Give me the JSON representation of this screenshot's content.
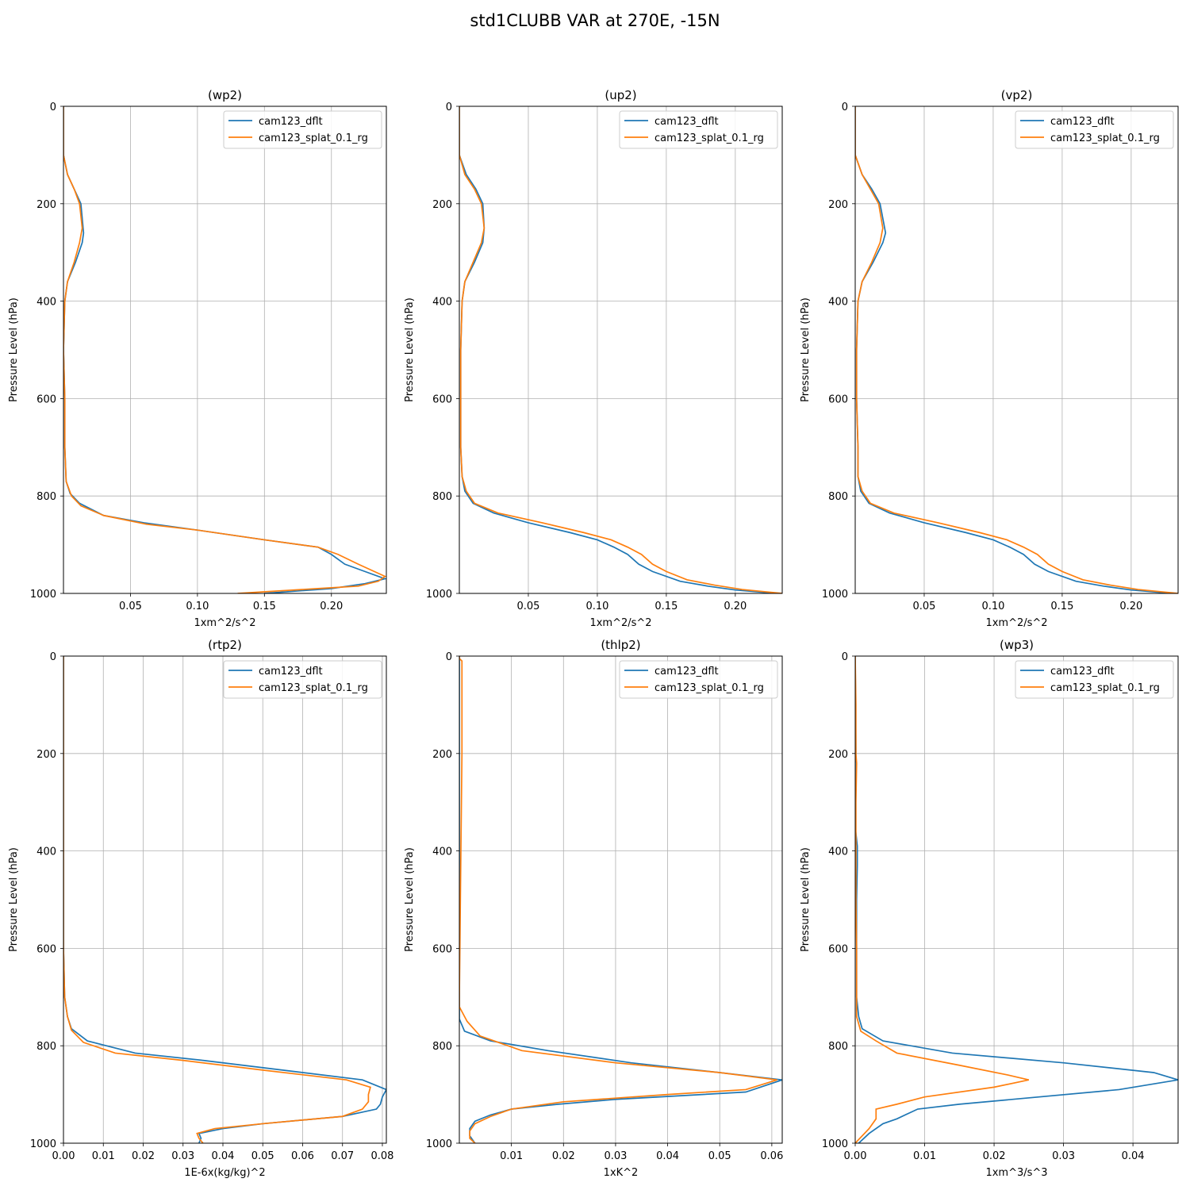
{
  "suptitle": "std1CLUBB VAR at 270E, -15N",
  "series_colors": {
    "cam123_dflt": "#1f77b4",
    "cam123_splat_0.1_rg": "#ff7f0e"
  },
  "chart_data": [
    {
      "type": "line",
      "title": "(wp2)",
      "xlabel": "1xm^2/s^2",
      "ylabel": "Pressure Level (hPa)",
      "xlim": [
        0.0,
        0.241
      ],
      "ylim": [
        1000,
        0
      ],
      "y_inverted": true,
      "grid": true,
      "legend": "top-right",
      "xticks": [
        0.05,
        0.1,
        0.15,
        0.2
      ],
      "xtick_labels": [
        "0.05",
        "0.10",
        "0.15",
        "0.20"
      ],
      "yticks": [
        0,
        200,
        400,
        600,
        800,
        1000
      ],
      "ytick_labels": [
        "0",
        "200",
        "400",
        "600",
        "800",
        "1000"
      ],
      "series": [
        {
          "name": "cam123_dflt",
          "x": [
            0.0,
            0.0,
            0.003,
            0.008,
            0.013,
            0.015,
            0.014,
            0.009,
            0.003,
            0.001,
            0.0,
            0.001,
            0.001,
            0.002,
            0.005,
            0.012,
            0.03,
            0.06,
            0.1,
            0.15,
            0.19,
            0.2,
            0.21,
            0.225,
            0.24,
            0.225,
            0.2,
            0.15
          ],
          "y": [
            0,
            100,
            140,
            170,
            200,
            260,
            280,
            320,
            360,
            400,
            500,
            600,
            700,
            770,
            795,
            815,
            840,
            855,
            870,
            890,
            905,
            920,
            940,
            955,
            970,
            980,
            990,
            1000
          ]
        },
        {
          "name": "cam123_splat_0.1_rg",
          "x": [
            0.0,
            0.0,
            0.003,
            0.008,
            0.012,
            0.014,
            0.012,
            0.008,
            0.003,
            0.001,
            0.0,
            0.001,
            0.001,
            0.002,
            0.006,
            0.013,
            0.03,
            0.062,
            0.1,
            0.15,
            0.19,
            0.205,
            0.22,
            0.232,
            0.24,
            0.235,
            0.22,
            0.19,
            0.13
          ],
          "y": [
            0,
            100,
            140,
            170,
            200,
            250,
            280,
            320,
            360,
            400,
            500,
            600,
            700,
            770,
            800,
            820,
            840,
            858,
            870,
            890,
            905,
            920,
            940,
            955,
            965,
            975,
            985,
            990,
            1000
          ]
        }
      ]
    },
    {
      "type": "line",
      "title": "(up2)",
      "xlabel": "1xm^2/s^2",
      "ylabel": "Pressure Level (hPa)",
      "xlim": [
        0.0,
        0.234
      ],
      "ylim": [
        1000,
        0
      ],
      "y_inverted": true,
      "grid": true,
      "legend": "top-right",
      "xticks": [
        0.05,
        0.1,
        0.15,
        0.2
      ],
      "xtick_labels": [
        "0.05",
        "0.10",
        "0.15",
        "0.20"
      ],
      "yticks": [
        0,
        200,
        400,
        600,
        800,
        1000
      ],
      "ytick_labels": [
        "0",
        "200",
        "400",
        "600",
        "800",
        "1000"
      ],
      "series": [
        {
          "name": "cam123_dflt",
          "x": [
            0.0,
            0.0,
            0.005,
            0.012,
            0.017,
            0.018,
            0.017,
            0.011,
            0.004,
            0.002,
            0.001,
            0.001,
            0.001,
            0.002,
            0.004,
            0.01,
            0.025,
            0.05,
            0.08,
            0.1,
            0.112,
            0.122,
            0.13,
            0.14,
            0.16,
            0.18,
            0.2,
            0.23
          ],
          "y": [
            0,
            100,
            140,
            170,
            200,
            250,
            280,
            320,
            360,
            400,
            500,
            600,
            700,
            760,
            790,
            815,
            835,
            855,
            875,
            890,
            905,
            920,
            940,
            955,
            975,
            985,
            993,
            1000
          ]
        },
        {
          "name": "cam123_splat_0.1_rg",
          "x": [
            0.0,
            0.0,
            0.004,
            0.011,
            0.016,
            0.018,
            0.016,
            0.01,
            0.004,
            0.002,
            0.001,
            0.001,
            0.001,
            0.002,
            0.005,
            0.011,
            0.028,
            0.06,
            0.09,
            0.11,
            0.122,
            0.132,
            0.14,
            0.15,
            0.165,
            0.185,
            0.205,
            0.234
          ],
          "y": [
            0,
            100,
            140,
            170,
            200,
            250,
            280,
            320,
            360,
            400,
            500,
            600,
            700,
            760,
            790,
            815,
            835,
            855,
            875,
            890,
            905,
            920,
            940,
            955,
            972,
            983,
            992,
            1000
          ]
        }
      ]
    },
    {
      "type": "line",
      "title": "(vp2)",
      "xlabel": "1xm^2/s^2",
      "ylabel": "Pressure Level (hPa)",
      "xlim": [
        0.0,
        0.234
      ],
      "ylim": [
        1000,
        0
      ],
      "y_inverted": true,
      "grid": true,
      "legend": "top-right",
      "xticks": [
        0.05,
        0.1,
        0.15,
        0.2
      ],
      "xtick_labels": [
        "0.05",
        "0.10",
        "0.15",
        "0.20"
      ],
      "yticks": [
        0,
        200,
        400,
        600,
        800,
        1000
      ],
      "ytick_labels": [
        "0",
        "200",
        "400",
        "600",
        "800",
        "1000"
      ],
      "series": [
        {
          "name": "cam123_dflt",
          "x": [
            0.0,
            0.0,
            0.005,
            0.012,
            0.018,
            0.022,
            0.02,
            0.013,
            0.005,
            0.002,
            0.001,
            0.001,
            0.002,
            0.002,
            0.004,
            0.01,
            0.025,
            0.05,
            0.08,
            0.1,
            0.112,
            0.122,
            0.13,
            0.14,
            0.16,
            0.18,
            0.2,
            0.23
          ],
          "y": [
            0,
            100,
            140,
            170,
            200,
            260,
            280,
            320,
            360,
            400,
            500,
            600,
            700,
            760,
            790,
            815,
            835,
            855,
            875,
            890,
            905,
            920,
            940,
            955,
            975,
            985,
            993,
            1000
          ]
        },
        {
          "name": "cam123_splat_0.1_rg",
          "x": [
            0.0,
            0.0,
            0.005,
            0.011,
            0.017,
            0.02,
            0.018,
            0.012,
            0.005,
            0.002,
            0.001,
            0.001,
            0.002,
            0.002,
            0.005,
            0.011,
            0.028,
            0.06,
            0.09,
            0.11,
            0.122,
            0.132,
            0.14,
            0.15,
            0.165,
            0.185,
            0.205,
            0.234
          ],
          "y": [
            0,
            100,
            140,
            170,
            200,
            250,
            280,
            320,
            360,
            400,
            500,
            600,
            700,
            760,
            790,
            815,
            835,
            855,
            875,
            890,
            905,
            920,
            940,
            955,
            972,
            983,
            992,
            1000
          ]
        }
      ]
    },
    {
      "type": "line",
      "title": "(rtp2)",
      "xlabel": "1E-6x(kg/kg)^2",
      "ylabel": "Pressure Level (hPa)",
      "xlim": [
        0.0,
        0.081
      ],
      "ylim": [
        1000,
        0
      ],
      "y_inverted": true,
      "grid": true,
      "legend": "top-right",
      "xticks": [
        0.0,
        0.01,
        0.02,
        0.03,
        0.04,
        0.05,
        0.06,
        0.07,
        0.08
      ],
      "xtick_labels": [
        "0.00",
        "0.01",
        "0.02",
        "0.03",
        "0.04",
        "0.05",
        "0.06",
        "0.07",
        "0.08"
      ],
      "yticks": [
        0,
        200,
        400,
        600,
        800,
        1000
      ],
      "ytick_labels": [
        "0",
        "200",
        "400",
        "600",
        "800",
        "1000"
      ],
      "series": [
        {
          "name": "cam123_dflt",
          "x": [
            0.0,
            0.0,
            0.0,
            0.0,
            0.0003,
            0.001,
            0.002,
            0.006,
            0.018,
            0.035,
            0.055,
            0.075,
            0.081,
            0.08,
            0.0795,
            0.0785,
            0.07,
            0.05,
            0.04,
            0.034,
            0.0345,
            0.034
          ],
          "y": [
            0,
            200,
            400,
            600,
            700,
            740,
            765,
            790,
            815,
            830,
            850,
            870,
            890,
            905,
            920,
            930,
            945,
            960,
            970,
            980,
            990,
            1000
          ]
        },
        {
          "name": "cam123_splat_0.1_rg",
          "x": [
            0.0,
            0.0,
            0.0,
            0.0,
            0.0003,
            0.001,
            0.002,
            0.005,
            0.013,
            0.03,
            0.05,
            0.071,
            0.077,
            0.0765,
            0.0765,
            0.075,
            0.07,
            0.05,
            0.038,
            0.0335,
            0.034,
            0.035
          ],
          "y": [
            0,
            200,
            400,
            600,
            700,
            740,
            768,
            793,
            815,
            830,
            850,
            870,
            885,
            900,
            915,
            930,
            945,
            960,
            970,
            980,
            990,
            1000
          ]
        }
      ]
    },
    {
      "type": "line",
      "title": "(thlp2)",
      "xlabel": "1xK^2",
      "ylabel": "Pressure Level (hPa)",
      "xlim": [
        0.0,
        0.062
      ],
      "ylim": [
        1000,
        0
      ],
      "y_inverted": true,
      "grid": true,
      "legend": "top-right",
      "xticks": [
        0.01,
        0.02,
        0.03,
        0.04,
        0.05,
        0.06
      ],
      "xtick_labels": [
        "0.01",
        "0.02",
        "0.03",
        "0.04",
        "0.05",
        "0.06"
      ],
      "yticks": [
        0,
        200,
        400,
        600,
        800,
        1000
      ],
      "ytick_labels": [
        "0",
        "200",
        "400",
        "600",
        "800",
        "1000"
      ],
      "series": [
        {
          "name": "cam123_dflt",
          "x": [
            0.0,
            0.0,
            0.0,
            0.0,
            0.0,
            0.0,
            0.0,
            0.001,
            0.006,
            0.017,
            0.033,
            0.05,
            0.062,
            0.055,
            0.03,
            0.019,
            0.01,
            0.006,
            0.003,
            0.002,
            0.002,
            0.003
          ],
          "y": [
            0,
            200,
            400,
            430,
            600,
            720,
            745,
            770,
            790,
            810,
            835,
            855,
            870,
            895,
            910,
            920,
            930,
            942,
            955,
            970,
            985,
            1000
          ]
        },
        {
          "name": "cam123_splat_0.1_rg",
          "x": [
            0.0,
            0.0,
            0.0005,
            0.0005,
            0.0005,
            0.0004,
            0.0003,
            0.0002,
            0.0001,
            0.0,
            0.0,
            0.0015,
            0.004,
            0.012,
            0.03,
            0.05,
            0.061,
            0.055,
            0.04,
            0.02,
            0.01,
            0.006,
            0.003,
            0.002,
            0.002,
            0.003
          ],
          "y": [
            0,
            5,
            10,
            100,
            200,
            300,
            400,
            500,
            600,
            700,
            720,
            750,
            780,
            810,
            835,
            855,
            870,
            890,
            900,
            915,
            930,
            945,
            960,
            975,
            990,
            1000
          ]
        }
      ]
    },
    {
      "type": "line",
      "title": "(wp3)",
      "xlabel": "1xm^3/s^3",
      "ylabel": "Pressure Level (hPa)",
      "xlim": [
        0.0,
        0.0465
      ],
      "ylim": [
        1000,
        0
      ],
      "y_inverted": true,
      "grid": true,
      "legend": "top-right",
      "xticks": [
        0.0,
        0.01,
        0.02,
        0.03,
        0.04
      ],
      "xtick_labels": [
        "0.00",
        "0.01",
        "0.02",
        "0.03",
        "0.04"
      ],
      "yticks": [
        0,
        200,
        400,
        600,
        800,
        1000
      ],
      "ytick_labels": [
        "0",
        "200",
        "400",
        "600",
        "800",
        "1000"
      ],
      "series": [
        {
          "name": "cam123_dflt",
          "x": [
            0.0,
            0.0001,
            0.0,
            0.0,
            0.0003,
            0.0003,
            0.0002,
            0.0002,
            0.0002,
            0.0005,
            0.001,
            0.004,
            0.014,
            0.03,
            0.043,
            0.0465,
            0.038,
            0.015,
            0.009,
            0.006,
            0.004,
            0.002,
            0.0005
          ],
          "y": [
            0,
            200,
            220,
            350,
            390,
            430,
            500,
            600,
            700,
            740,
            765,
            790,
            815,
            835,
            855,
            870,
            890,
            920,
            930,
            950,
            960,
            980,
            1000
          ]
        },
        {
          "name": "cam123_splat_0.1_rg",
          "x": [
            0.0,
            0.0001,
            0.0001,
            0.0002,
            0.0001,
            0.0001,
            0.0001,
            0.0002,
            0.0002,
            0.0002,
            0.0008,
            0.003,
            0.006,
            0.015,
            0.022,
            0.025,
            0.02,
            0.01,
            0.006,
            0.003,
            0.003,
            0.002,
            0.0
          ],
          "y": [
            0,
            100,
            200,
            220,
            300,
            400,
            500,
            600,
            700,
            740,
            770,
            790,
            815,
            840,
            860,
            870,
            885,
            905,
            920,
            930,
            950,
            970,
            1000
          ]
        }
      ]
    }
  ]
}
